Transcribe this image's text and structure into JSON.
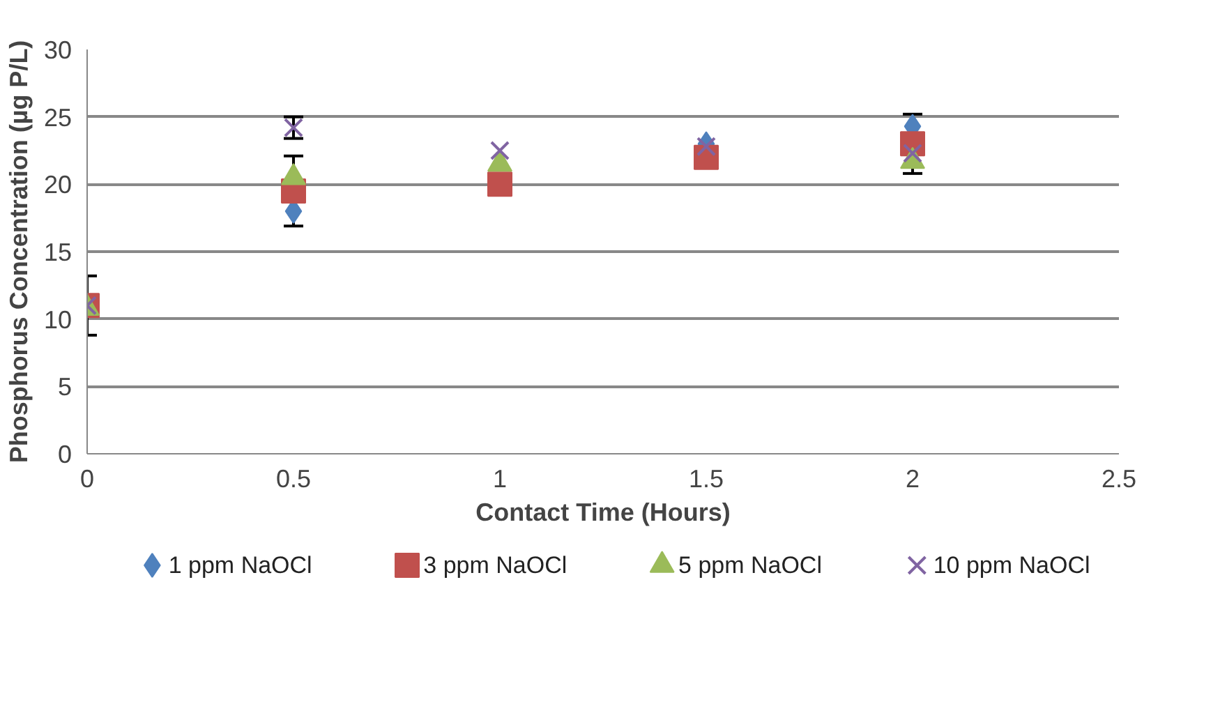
{
  "chart_data": {
    "type": "scatter",
    "xlabel": "Contact Time (Hours)",
    "ylabel": "Phosphorus Concentration (µg P/L)",
    "x": [
      0,
      0.5,
      1,
      1.5,
      2
    ],
    "series": [
      {
        "name": "1 ppm NaOCl",
        "color": "#4f81bd",
        "marker": "diamond",
        "values": [
          null,
          18,
          null,
          23,
          24.3
        ]
      },
      {
        "name": "3 ppm NaOCl",
        "color": "#c0504d",
        "marker": "square",
        "values": [
          11,
          19.5,
          20,
          22,
          23
        ],
        "errors": [
          2.2,
          2.6,
          null,
          null,
          2.2
        ]
      },
      {
        "name": "5 ppm NaOCl",
        "color": "#9bbb59",
        "marker": "triangle",
        "values": [
          10.8,
          20.5,
          21.5,
          null,
          21.7
        ]
      },
      {
        "name": "10 ppm NaOCl",
        "color": "#8064a2",
        "marker": "cross",
        "values": [
          11,
          24.2,
          22.5,
          22.8,
          22.3
        ],
        "errors": [
          null,
          0.8,
          null,
          null,
          null
        ]
      }
    ],
    "xlim": [
      0,
      2.5
    ],
    "xticks": [
      0,
      0.5,
      1,
      1.5,
      2,
      2.5
    ],
    "ylim": [
      0,
      30
    ],
    "yticks": [
      0,
      5,
      10,
      15,
      20,
      25,
      30
    ],
    "grid": "y",
    "legend": "bottom"
  }
}
